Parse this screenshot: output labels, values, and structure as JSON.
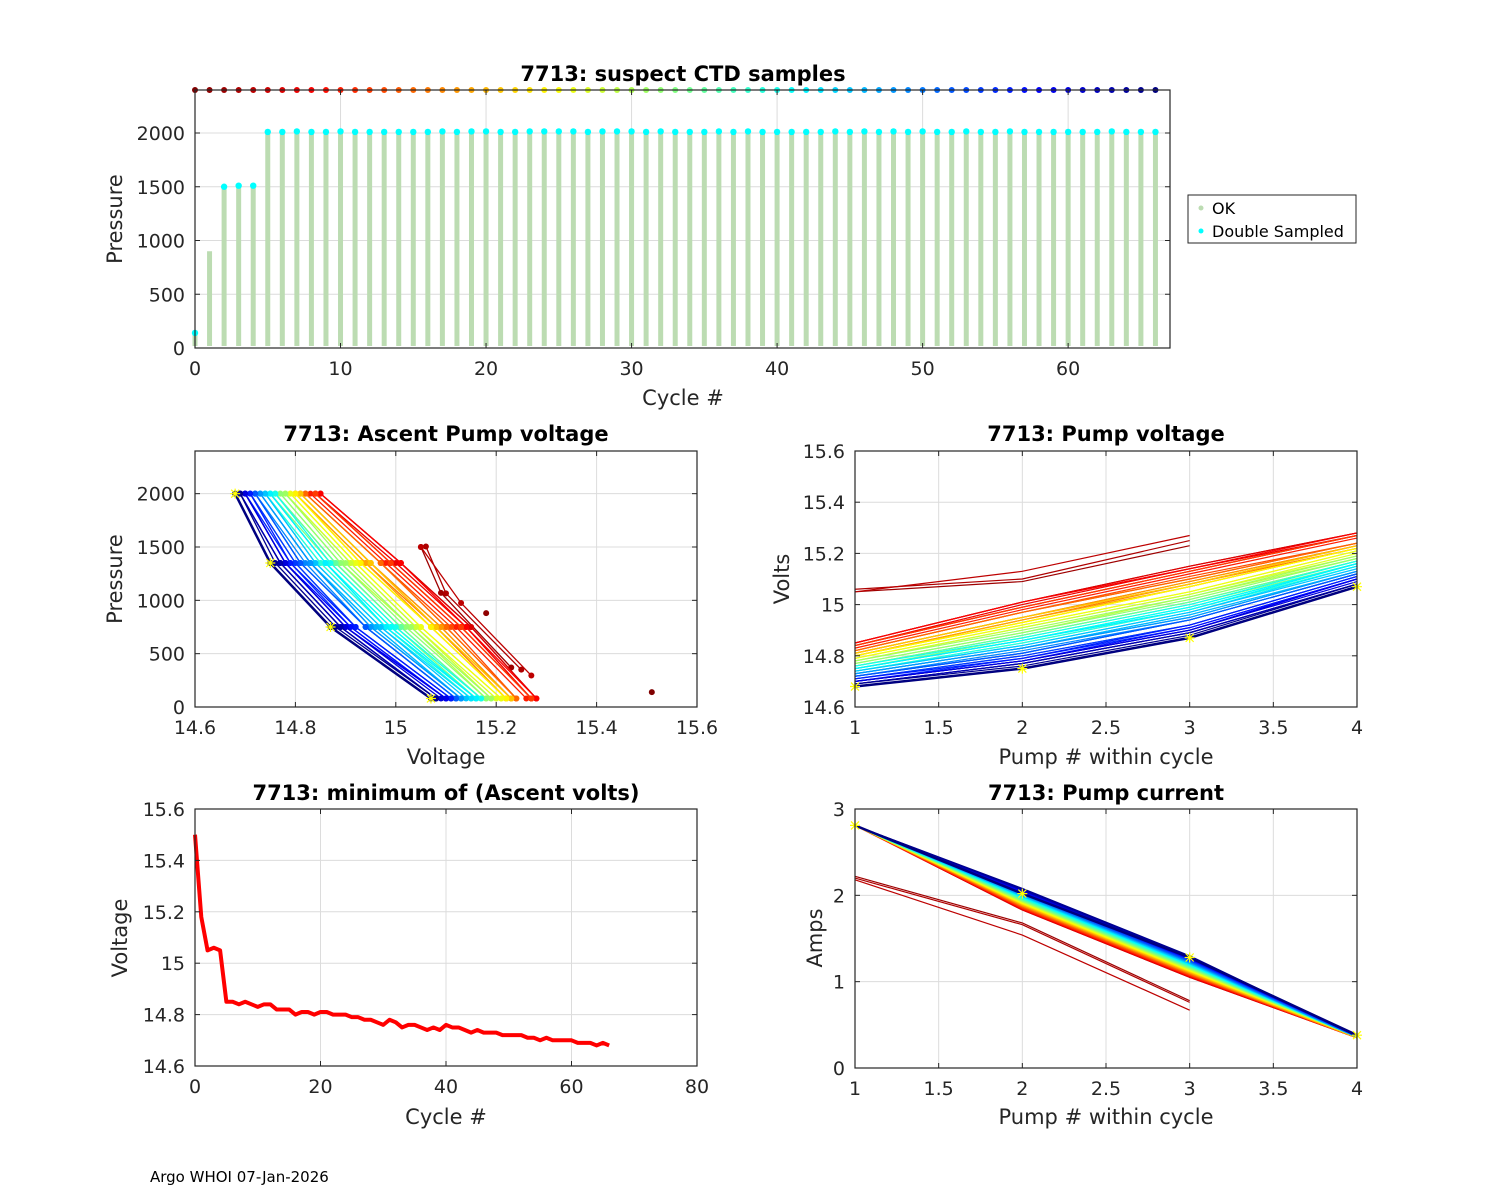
{
  "footer": "Argo WHOI 07-Jan-2026",
  "colors": {
    "ok_bar": "#bcdcb2",
    "double_sampled": "#00ffff",
    "min_volts_line": "#ff0000",
    "last_cycle_marker": "#ffff00",
    "grid": "#dcdcdc",
    "axis": "#262626"
  },
  "chart_data": [
    {
      "id": "suspect",
      "type": "bar",
      "title": "7713: suspect CTD samples",
      "xlabel": "Cycle #",
      "ylabel": "Pressure",
      "xlim": [
        0,
        67
      ],
      "ylim": [
        2400,
        0
      ],
      "xticks": [
        0,
        10,
        20,
        30,
        40,
        50,
        60
      ],
      "yticks": [
        0,
        500,
        1000,
        1500,
        2000
      ],
      "grid": true,
      "legend": {
        "placement": "outside-right",
        "entries": [
          {
            "label": "OK",
            "color": "#bcdcb2"
          },
          {
            "label": "Double Sampled",
            "color": "#00ffff"
          }
        ]
      },
      "cycles": [
        0,
        1,
        2,
        3,
        4,
        5,
        6,
        7,
        8,
        9,
        10,
        11,
        12,
        13,
        14,
        15,
        16,
        17,
        18,
        19,
        20,
        21,
        22,
        23,
        24,
        25,
        26,
        27,
        28,
        29,
        30,
        31,
        32,
        33,
        34,
        35,
        36,
        37,
        38,
        39,
        40,
        41,
        42,
        43,
        44,
        45,
        46,
        47,
        48,
        49,
        50,
        51,
        52,
        53,
        54,
        55,
        56,
        57,
        58,
        59,
        60,
        61,
        62,
        63,
        64,
        65,
        66
      ],
      "max_pressure": [
        140,
        900,
        1500,
        1510,
        1510,
        2010,
        2010,
        2020,
        2010,
        2010,
        2015,
        2010,
        2010,
        2010,
        2010,
        2010,
        2010,
        2015,
        2010,
        2015,
        2015,
        2010,
        2010,
        2015,
        2015,
        2015,
        2015,
        2010,
        2015,
        2015,
        2015,
        2010,
        2015,
        2010,
        2010,
        2010,
        2015,
        2010,
        2015,
        2010,
        2010,
        2010,
        2010,
        2010,
        2015,
        2010,
        2015,
        2010,
        2015,
        2010,
        2015,
        2010,
        2010,
        2015,
        2010,
        2010,
        2015,
        2010,
        2010,
        2010,
        2010,
        2010,
        2010,
        2015,
        2010,
        2010,
        2010
      ],
      "double_sampled_pressure": [
        140,
        null,
        1500,
        1510,
        1510,
        2010,
        2010,
        2015,
        2010,
        2010,
        2015,
        2010,
        2010,
        2010,
        2010,
        2010,
        2010,
        2015,
        2010,
        2015,
        2015,
        2010,
        2010,
        2015,
        2015,
        2015,
        2015,
        2010,
        2015,
        2015,
        2015,
        2010,
        2015,
        2010,
        2010,
        2010,
        2015,
        2010,
        2015,
        2010,
        2010,
        2010,
        2010,
        2010,
        2015,
        2010,
        2015,
        2010,
        2015,
        2010,
        2015,
        2010,
        2010,
        2015,
        2010,
        2010,
        2015,
        2010,
        2010,
        2010,
        2010,
        2010,
        2010,
        2015,
        2010,
        2010,
        2010
      ],
      "colorbar_marker_pressure": 2400
    },
    {
      "id": "ascent",
      "type": "line",
      "title": "7713: Ascent Pump voltage",
      "xlabel": "Voltage",
      "ylabel": "Pressure",
      "xlim": [
        14.6,
        15.6
      ],
      "ylim": [
        2400,
        0
      ],
      "xticks": [
        14.6,
        14.8,
        15,
        15.2,
        15.4,
        15.6
      ],
      "yticks": [
        0,
        500,
        1000,
        1500,
        2000
      ],
      "grid": true,
      "note": "one line per cycle; x = pump voltage, y = pressure at pump; last cycle marked with yellow stars",
      "pump_pressures_deep": [
        2000,
        1350,
        750,
        80
      ],
      "pump_pressures_1500": {
        "2": [
          1500,
          1070,
          370
        ],
        "3": [
          1505,
          1065,
          350
        ],
        "4": [
          1500,
          975,
          295
        ]
      },
      "single_points": [
        {
          "cycle": 0,
          "voltage": 15.51,
          "pressure": 140
        },
        {
          "cycle": 1,
          "voltage": 15.18,
          "pressure": 880
        }
      ]
    },
    {
      "id": "pumpvolt",
      "type": "line",
      "title": "7713: Pump voltage",
      "xlabel": "Pump # within cycle",
      "ylabel": "Volts",
      "xlim": [
        1,
        4
      ],
      "ylim": [
        14.6,
        15.6
      ],
      "xticks": [
        1,
        1.5,
        2,
        2.5,
        3,
        3.5,
        4
      ],
      "yticks": [
        14.6,
        14.8,
        15,
        15.2,
        15.4,
        15.6
      ],
      "grid": true
    },
    {
      "id": "minvolt",
      "type": "line",
      "title": "7713: minimum of (Ascent volts)",
      "xlabel": "Cycle #",
      "ylabel": "Voltage",
      "xlim": [
        0,
        80
      ],
      "ylim": [
        14.6,
        15.6
      ],
      "xticks": [
        0,
        20,
        40,
        60,
        80
      ],
      "yticks": [
        14.6,
        14.8,
        15,
        15.2,
        15.4,
        15.6
      ],
      "grid": true,
      "x": [
        0,
        1,
        2,
        3,
        4,
        5,
        6,
        7,
        8,
        9,
        10,
        11,
        12,
        13,
        14,
        15,
        16,
        17,
        18,
        19,
        20,
        21,
        22,
        23,
        24,
        25,
        26,
        27,
        28,
        29,
        30,
        31,
        32,
        33,
        34,
        35,
        36,
        37,
        38,
        39,
        40,
        41,
        42,
        43,
        44,
        45,
        46,
        47,
        48,
        49,
        50,
        51,
        52,
        53,
        54,
        55,
        56,
        57,
        58,
        59,
        60,
        61,
        62,
        63,
        64,
        65,
        66
      ],
      "values": [
        15.5,
        15.18,
        15.05,
        15.06,
        15.05,
        14.85,
        14.85,
        14.84,
        14.85,
        14.84,
        14.83,
        14.84,
        14.84,
        14.82,
        14.82,
        14.82,
        14.8,
        14.81,
        14.81,
        14.8,
        14.81,
        14.81,
        14.8,
        14.8,
        14.8,
        14.79,
        14.79,
        14.78,
        14.78,
        14.77,
        14.76,
        14.78,
        14.77,
        14.75,
        14.76,
        14.76,
        14.75,
        14.74,
        14.75,
        14.74,
        14.76,
        14.75,
        14.75,
        14.74,
        14.73,
        14.74,
        14.73,
        14.73,
        14.73,
        14.72,
        14.72,
        14.72,
        14.72,
        14.71,
        14.71,
        14.7,
        14.71,
        14.7,
        14.7,
        14.7,
        14.7,
        14.69,
        14.69,
        14.69,
        14.68,
        14.69,
        14.68
      ]
    },
    {
      "id": "pumpcurrent",
      "type": "line",
      "title": "7713: Pump current",
      "xlabel": "Pump # within cycle",
      "ylabel": "Amps",
      "xlim": [
        1,
        4
      ],
      "ylim": [
        0,
        3
      ],
      "xticks": [
        1,
        1.5,
        2,
        2.5,
        3,
        3.5,
        4
      ],
      "yticks": [
        0,
        1,
        2,
        3
      ],
      "grid": true
    }
  ],
  "pump_cycles": {
    "note": "per-cycle pump readings (pump # 1..4) for cycles 2..66",
    "cycles": [
      2,
      3,
      4,
      5,
      6,
      7,
      8,
      9,
      10,
      11,
      12,
      13,
      14,
      15,
      16,
      17,
      18,
      19,
      20,
      21,
      22,
      23,
      24,
      25,
      26,
      27,
      28,
      29,
      30,
      31,
      32,
      33,
      34,
      35,
      36,
      37,
      38,
      39,
      40,
      41,
      42,
      43,
      44,
      45,
      46,
      47,
      48,
      49,
      50,
      51,
      52,
      53,
      54,
      55,
      56,
      57,
      58,
      59,
      60,
      61,
      62,
      63,
      64,
      65,
      66
    ],
    "volts": [
      [
        15.05,
        15.09,
        15.23
      ],
      [
        15.06,
        15.1,
        15.25
      ],
      [
        15.05,
        15.13,
        15.27
      ],
      [
        14.85,
        15.01,
        15.15,
        15.28
      ],
      [
        14.85,
        15.01,
        15.15,
        15.28
      ],
      [
        14.84,
        15.0,
        15.14,
        15.27
      ],
      [
        14.85,
        15.01,
        15.14,
        15.28
      ],
      [
        14.84,
        14.99,
        15.13,
        15.27
      ],
      [
        14.83,
        14.98,
        15.12,
        15.26
      ],
      [
        14.84,
        14.99,
        15.13,
        15.27
      ],
      [
        14.84,
        14.99,
        15.13,
        15.27
      ],
      [
        14.82,
        14.97,
        15.11,
        15.24
      ],
      [
        14.82,
        14.97,
        15.1,
        15.24
      ],
      [
        14.82,
        14.97,
        15.1,
        15.24
      ],
      [
        14.8,
        14.94,
        15.08,
        15.22
      ],
      [
        14.81,
        14.95,
        15.09,
        15.23
      ],
      [
        14.81,
        14.95,
        15.09,
        15.23
      ],
      [
        14.8,
        14.94,
        15.07,
        15.22
      ],
      [
        14.81,
        14.95,
        15.08,
        15.23
      ],
      [
        14.81,
        14.95,
        15.08,
        15.23
      ],
      [
        14.8,
        14.93,
        15.07,
        15.22
      ],
      [
        14.8,
        14.93,
        15.07,
        15.22
      ],
      [
        14.8,
        14.93,
        15.07,
        15.22
      ],
      [
        14.79,
        14.92,
        15.05,
        15.21
      ],
      [
        14.79,
        14.92,
        15.05,
        15.21
      ],
      [
        14.78,
        14.91,
        15.04,
        15.2
      ],
      [
        14.78,
        14.91,
        15.04,
        15.19
      ],
      [
        14.77,
        14.89,
        15.03,
        15.18
      ],
      [
        14.76,
        14.88,
        15.01,
        15.17
      ],
      [
        14.78,
        14.9,
        15.03,
        15.19
      ],
      [
        14.77,
        14.89,
        15.02,
        15.18
      ],
      [
        14.75,
        14.87,
        15.0,
        15.16
      ],
      [
        14.76,
        14.88,
        15.01,
        15.17
      ],
      [
        14.76,
        14.88,
        15.01,
        15.17
      ],
      [
        14.75,
        14.86,
        14.99,
        15.16
      ],
      [
        14.74,
        14.85,
        14.98,
        15.15
      ],
      [
        14.75,
        14.86,
        14.99,
        15.16
      ],
      [
        14.74,
        14.85,
        14.98,
        15.15
      ],
      [
        14.76,
        14.87,
        15.0,
        15.17
      ],
      [
        14.75,
        14.86,
        14.99,
        15.16
      ],
      [
        14.75,
        14.86,
        14.98,
        15.16
      ],
      [
        14.74,
        14.84,
        14.97,
        15.15
      ],
      [
        14.73,
        14.83,
        14.96,
        15.13
      ],
      [
        14.74,
        14.84,
        14.97,
        15.14
      ],
      [
        14.73,
        14.83,
        14.96,
        15.13
      ],
      [
        14.73,
        14.83,
        14.95,
        15.13
      ],
      [
        14.73,
        14.83,
        14.95,
        15.13
      ],
      [
        14.72,
        14.82,
        14.94,
        15.12
      ],
      [
        14.72,
        14.81,
        14.94,
        15.12
      ],
      [
        14.72,
        14.81,
        14.94,
        15.12
      ],
      [
        14.72,
        14.81,
        14.94,
        15.12
      ],
      [
        14.71,
        14.8,
        14.92,
        15.11
      ],
      [
        14.71,
        14.8,
        14.92,
        15.11
      ],
      [
        14.7,
        14.79,
        14.91,
        15.1
      ],
      [
        14.71,
        14.79,
        14.92,
        15.11
      ],
      [
        14.7,
        14.78,
        14.91,
        15.1
      ],
      [
        14.7,
        14.78,
        14.9,
        15.1
      ],
      [
        14.7,
        14.78,
        14.9,
        15.1
      ],
      [
        14.7,
        14.78,
        14.9,
        15.09
      ],
      [
        14.69,
        14.77,
        14.89,
        15.08
      ],
      [
        14.69,
        14.77,
        14.89,
        15.08
      ],
      [
        14.69,
        14.77,
        14.89,
        15.08
      ],
      [
        14.68,
        14.75,
        14.87,
        15.07
      ],
      [
        14.69,
        14.76,
        14.88,
        15.08
      ],
      [
        14.68,
        14.75,
        14.87,
        15.07
      ]
    ],
    "amps": [
      [
        2.22,
        1.68,
        0.78
      ],
      [
        2.2,
        1.66,
        0.76
      ],
      [
        2.18,
        1.54,
        0.67
      ],
      [
        2.81,
        1.83,
        1.05,
        0.35
      ],
      [
        2.81,
        1.83,
        1.05,
        0.35
      ],
      [
        2.81,
        1.84,
        1.06,
        0.35
      ],
      [
        2.81,
        1.84,
        1.06,
        0.35
      ],
      [
        2.81,
        1.85,
        1.07,
        0.35
      ],
      [
        2.81,
        1.85,
        1.07,
        0.35
      ],
      [
        2.81,
        1.85,
        1.07,
        0.35
      ],
      [
        2.81,
        1.86,
        1.08,
        0.35
      ],
      [
        2.81,
        1.86,
        1.08,
        0.35
      ],
      [
        2.81,
        1.87,
        1.09,
        0.35
      ],
      [
        2.81,
        1.87,
        1.09,
        0.35
      ],
      [
        2.81,
        1.88,
        1.1,
        0.35
      ],
      [
        2.81,
        1.88,
        1.1,
        0.35
      ],
      [
        2.81,
        1.88,
        1.1,
        0.35
      ],
      [
        2.81,
        1.89,
        1.11,
        0.35
      ],
      [
        2.81,
        1.89,
        1.11,
        0.35
      ],
      [
        2.81,
        1.9,
        1.12,
        0.36
      ],
      [
        2.81,
        1.9,
        1.12,
        0.36
      ],
      [
        2.81,
        1.9,
        1.12,
        0.36
      ],
      [
        2.81,
        1.91,
        1.13,
        0.36
      ],
      [
        2.81,
        1.91,
        1.13,
        0.36
      ],
      [
        2.81,
        1.92,
        1.14,
        0.36
      ],
      [
        2.81,
        1.92,
        1.14,
        0.36
      ],
      [
        2.81,
        1.92,
        1.14,
        0.36
      ],
      [
        2.81,
        1.93,
        1.15,
        0.36
      ],
      [
        2.81,
        1.93,
        1.15,
        0.36
      ],
      [
        2.81,
        1.94,
        1.16,
        0.36
      ],
      [
        2.81,
        1.94,
        1.16,
        0.36
      ],
      [
        2.81,
        1.94,
        1.16,
        0.36
      ],
      [
        2.81,
        1.95,
        1.17,
        0.36
      ],
      [
        2.81,
        1.95,
        1.17,
        0.36
      ],
      [
        2.81,
        1.96,
        1.18,
        0.36
      ],
      [
        2.81,
        1.96,
        1.18,
        0.36
      ],
      [
        2.81,
        1.97,
        1.19,
        0.36
      ],
      [
        2.81,
        1.97,
        1.19,
        0.36
      ],
      [
        2.81,
        1.97,
        1.19,
        0.36
      ],
      [
        2.81,
        1.98,
        1.2,
        0.36
      ],
      [
        2.81,
        1.98,
        1.2,
        0.36
      ],
      [
        2.81,
        1.99,
        1.21,
        0.36
      ],
      [
        2.81,
        1.99,
        1.21,
        0.36
      ],
      [
        2.81,
        1.99,
        1.21,
        0.36
      ],
      [
        2.81,
        2.0,
        1.22,
        0.36
      ],
      [
        2.81,
        2.0,
        1.22,
        0.36
      ],
      [
        2.81,
        2.01,
        1.23,
        0.36
      ],
      [
        2.81,
        2.01,
        1.23,
        0.36
      ],
      [
        2.81,
        2.01,
        1.23,
        0.36
      ],
      [
        2.81,
        2.02,
        1.24,
        0.37
      ],
      [
        2.81,
        2.02,
        1.24,
        0.37
      ],
      [
        2.81,
        2.03,
        1.25,
        0.37
      ],
      [
        2.81,
        2.03,
        1.25,
        0.37
      ],
      [
        2.81,
        2.04,
        1.26,
        0.37
      ],
      [
        2.81,
        2.04,
        1.26,
        0.37
      ],
      [
        2.81,
        2.04,
        1.26,
        0.37
      ],
      [
        2.81,
        2.05,
        1.27,
        0.37
      ],
      [
        2.81,
        2.05,
        1.27,
        0.37
      ],
      [
        2.81,
        2.06,
        1.28,
        0.37
      ],
      [
        2.81,
        2.06,
        1.28,
        0.37
      ],
      [
        2.81,
        2.06,
        1.28,
        0.37
      ],
      [
        2.81,
        2.07,
        1.29,
        0.37
      ],
      [
        2.81,
        2.07,
        1.29,
        0.37
      ],
      [
        2.81,
        2.08,
        1.3,
        0.37
      ],
      [
        2.81,
        2.02,
        1.28,
        0.38
      ]
    ]
  }
}
